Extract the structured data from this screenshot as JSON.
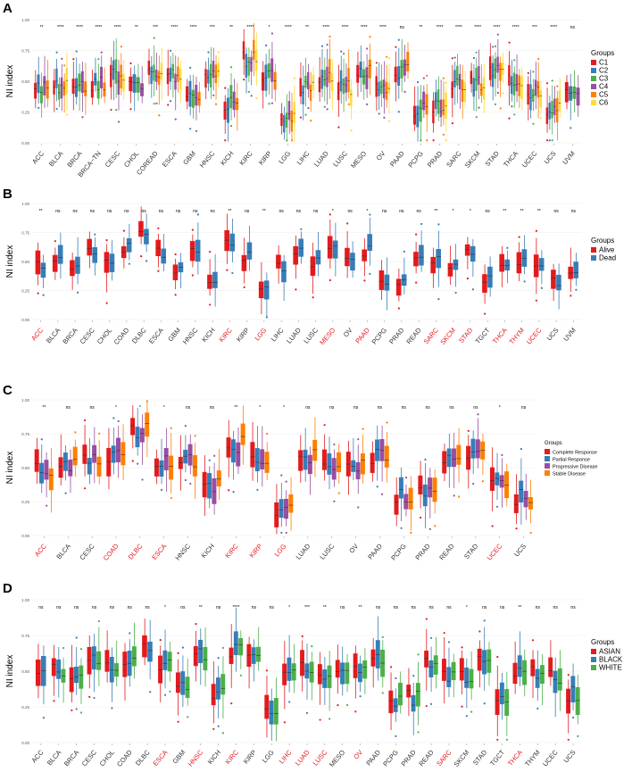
{
  "chart_data": [
    {
      "panel_label": "A",
      "type": "box",
      "ylabel": "NI index",
      "ylim": [
        0,
        1
      ],
      "yticks": [
        "0.00",
        "0.25",
        "0.50",
        "0.75",
        "1.00"
      ],
      "legend": {
        "title": "Groups",
        "placement": "right",
        "items": [
          "C1",
          "C2",
          "C3",
          "C4",
          "C5",
          "C6"
        ]
      },
      "colors": [
        "#e41a1c",
        "#377eb8",
        "#4daf4a",
        "#984ea3",
        "#ff7f00",
        "#ffdd33"
      ],
      "categories": [
        "ACC",
        "BLCA",
        "BRCA",
        "BRCA−TN",
        "CESC",
        "CHOL",
        "COREAD",
        "ESCA",
        "GBM",
        "HNSC",
        "KICH",
        "KIRC",
        "KIRP",
        "LGG",
        "LIHC",
        "LUAD",
        "LUSC",
        "MESO",
        "OV",
        "PAAD",
        "PCPG",
        "PRAD",
        "SARC",
        "SKCM",
        "STAD",
        "THCA",
        "UCEC",
        "UCS",
        "UVM"
      ],
      "significance": [
        "**",
        "****",
        "****",
        "****",
        "****",
        "**",
        "***",
        "****",
        "****",
        "***",
        "**",
        "****",
        "*",
        "****",
        "**",
        "****",
        "****",
        "****",
        "****",
        "ns",
        "**",
        "****",
        "****",
        "****",
        "****",
        "****",
        "***",
        "****",
        "ns"
      ],
      "highlighted": [],
      "medians": [
        0.44,
        0.45,
        0.47,
        0.48,
        0.55,
        0.44,
        0.55,
        0.55,
        0.38,
        0.55,
        0.32,
        0.68,
        0.55,
        0.22,
        0.46,
        0.52,
        0.45,
        0.57,
        0.45,
        0.58,
        0.27,
        0.3,
        0.47,
        0.48,
        0.58,
        0.52,
        0.42,
        0.27,
        0.43
      ],
      "n_groups": [
        5,
        6,
        5,
        5,
        6,
        4,
        6,
        6,
        5,
        6,
        5,
        6,
        5,
        6,
        6,
        6,
        6,
        5,
        6,
        5,
        5,
        6,
        6,
        6,
        6,
        6,
        6,
        6,
        4
      ]
    },
    {
      "panel_label": "B",
      "type": "box",
      "ylabel": "NI index",
      "ylim": [
        0,
        1
      ],
      "yticks": [
        "0.00",
        "0.25",
        "0.50",
        "0.75",
        "1.00"
      ],
      "legend": {
        "title": "Groups",
        "placement": "right",
        "items": [
          "Alive",
          "Dead"
        ]
      },
      "colors": [
        "#e41a1c",
        "#377eb8"
      ],
      "categories": [
        "ACC",
        "BLCA",
        "BRCA",
        "CESC",
        "CHOL",
        "COAD",
        "DLBC",
        "ESCA",
        "GBM",
        "HNSC",
        "KICH",
        "KIRC",
        "KIRP",
        "LGG",
        "LIHC",
        "LUAD",
        "LUSC",
        "MESO",
        "OV",
        "PAAD",
        "PCPG",
        "PRAD",
        "READ",
        "SARC",
        "SKCM",
        "STAD",
        "TGCT",
        "THCA",
        "THYM",
        "UCEC",
        "UCS",
        "UVM"
      ],
      "significance": [
        "**",
        "ns",
        "ns",
        "ns",
        "ns",
        "ns",
        "ns",
        "ns",
        "ns",
        "ns",
        "ns",
        "**",
        "ns",
        "**",
        "ns",
        "ns",
        "ns",
        "*",
        "ns",
        "*",
        "ns",
        "ns",
        "ns",
        "**",
        "*",
        "*",
        "ns",
        "**",
        "**",
        "**",
        "ns",
        "ns"
      ],
      "highlighted": [
        "ACC",
        "KIRC",
        "LGG",
        "MESO",
        "PAAD",
        "SARC",
        "SKCM",
        "STAD",
        "THCA",
        "THYM",
        "UCEC"
      ],
      "medians": [
        0.46,
        0.5,
        0.48,
        0.58,
        0.5,
        0.6,
        0.72,
        0.58,
        0.4,
        0.58,
        0.33,
        0.68,
        0.55,
        0.23,
        0.47,
        0.57,
        0.47,
        0.62,
        0.48,
        0.58,
        0.28,
        0.29,
        0.58,
        0.5,
        0.48,
        0.58,
        0.32,
        0.47,
        0.52,
        0.43,
        0.32,
        0.45
      ],
      "n_groups": [
        2,
        2,
        2,
        2,
        2,
        2,
        2,
        2,
        2,
        2,
        2,
        2,
        2,
        2,
        2,
        2,
        2,
        2,
        2,
        2,
        2,
        2,
        2,
        2,
        2,
        2,
        2,
        2,
        2,
        2,
        2,
        2
      ]
    },
    {
      "panel_label": "C",
      "type": "box",
      "ylabel": "NI index",
      "ylim": [
        0,
        1
      ],
      "yticks": [
        "0.00",
        "0.25",
        "0.50",
        "0.75",
        "1.00"
      ],
      "legend": {
        "title": "Groups",
        "placement": "right",
        "items": [
          "Complete Response",
          "Partial Response",
          "Progressive Disease",
          "Stable Disease"
        ]
      },
      "colors": [
        "#e41a1c",
        "#377eb8",
        "#984ea3",
        "#ff7f00"
      ],
      "categories": [
        "ACC",
        "BLCA",
        "CESC",
        "COAD",
        "DLBC",
        "ESCA",
        "HNSC",
        "KICH",
        "KIRC",
        "KIRP",
        "LGG",
        "LUAD",
        "LUSC",
        "OV",
        "PAAD",
        "PCPG",
        "PRAD",
        "READ",
        "STAD",
        "UCEC",
        "UCS"
      ],
      "significance": [
        "**",
        "ns",
        "ns",
        "*",
        "*",
        "*",
        "ns",
        "ns",
        "**",
        "*",
        "*",
        "ns",
        "ns",
        "ns",
        "ns",
        "ns",
        "ns",
        "ns",
        "ns",
        "*",
        "ns"
      ],
      "highlighted": [
        "ACC",
        "COAD",
        "DLBC",
        "ESCA",
        "KIRC",
        "KIRP",
        "LGG",
        "UCEC"
      ],
      "medians": [
        0.47,
        0.52,
        0.57,
        0.58,
        0.77,
        0.55,
        0.55,
        0.37,
        0.67,
        0.53,
        0.2,
        0.58,
        0.5,
        0.5,
        0.58,
        0.29,
        0.3,
        0.57,
        0.57,
        0.43,
        0.28
      ],
      "n_groups": [
        4,
        4,
        4,
        4,
        4,
        4,
        4,
        4,
        4,
        4,
        4,
        4,
        4,
        4,
        4,
        4,
        4,
        4,
        4,
        4,
        4
      ]
    },
    {
      "panel_label": "D",
      "type": "box",
      "ylabel": "NI index",
      "ylim": [
        0,
        1
      ],
      "yticks": [
        "0.00",
        "0.25",
        "0.50",
        "0.75",
        "1.00"
      ],
      "legend": {
        "title": "Groups",
        "placement": "right",
        "items": [
          "ASIAN",
          "BLACK",
          "WHITE"
        ]
      },
      "colors": [
        "#e41a1c",
        "#377eb8",
        "#4daf4a"
      ],
      "categories": [
        "ACC",
        "BLCA",
        "BRCA",
        "CESC",
        "CHOL",
        "COAD",
        "DLBC",
        "ESCA",
        "GBM",
        "HNSC",
        "KICH",
        "KIRC",
        "KIRP",
        "LGG",
        "LIHC",
        "LUAD",
        "LUSC",
        "MESO",
        "OV",
        "PAAD",
        "PCPG",
        "PRAD",
        "READ",
        "SARC",
        "SKCM",
        "STAD",
        "TGCT",
        "THCA",
        "THYM",
        "UCEC",
        "UCS"
      ],
      "significance": [
        "ns",
        "ns",
        "ns",
        "ns",
        "ns",
        "ns",
        "ns",
        "*",
        "ns",
        "**",
        "ns",
        "****",
        "ns",
        "ns",
        "*",
        "***",
        "**",
        "ns",
        "**",
        "ns",
        "ns",
        "ns",
        "ns",
        "ns",
        "*",
        "ns",
        "ns",
        "**",
        "ns",
        "ns",
        "ns"
      ],
      "highlighted": [
        "ESCA",
        "HNSC",
        "KIRC",
        "LIHC",
        "LUAD",
        "LUSC",
        "OV",
        "SARC",
        "THCA"
      ],
      "medians": [
        0.48,
        0.52,
        0.48,
        0.57,
        0.52,
        0.6,
        0.7,
        0.55,
        0.38,
        0.6,
        0.33,
        0.65,
        0.57,
        0.2,
        0.5,
        0.55,
        0.48,
        0.55,
        0.48,
        0.58,
        0.3,
        0.32,
        0.55,
        0.48,
        0.48,
        0.57,
        0.32,
        0.5,
        0.5,
        0.45,
        0.35
      ],
      "n_groups": [
        2,
        3,
        3,
        3,
        3,
        3,
        2,
        3,
        3,
        3,
        3,
        3,
        3,
        3,
        3,
        3,
        3,
        3,
        3,
        3,
        3,
        3,
        3,
        3,
        3,
        3,
        3,
        3,
        3,
        3,
        3
      ]
    }
  ]
}
